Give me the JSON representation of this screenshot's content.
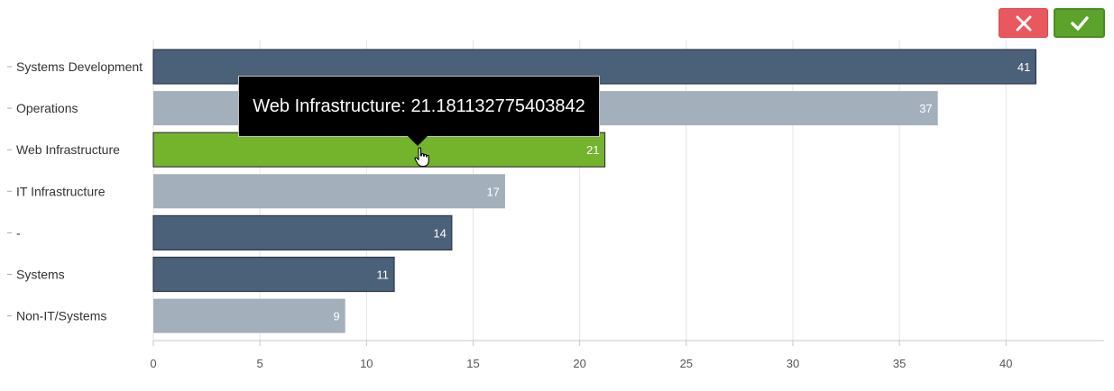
{
  "actions": {
    "cancel_icon": "close-icon",
    "confirm_icon": "check-icon"
  },
  "tooltip": {
    "text": "Web Infrastructure: 21.181132775403842"
  },
  "chart_data": {
    "type": "bar",
    "orientation": "horizontal",
    "categories": [
      "Systems Development",
      "Operations",
      "Web Infrastructure",
      "IT Infrastructure",
      "-",
      "Systems",
      "Non-IT/Systems"
    ],
    "values": [
      41.4,
      36.8,
      21.181132775403842,
      16.5,
      14,
      11.3,
      9.0
    ],
    "value_labels": [
      "41",
      "37",
      "21",
      "17",
      "14",
      "11",
      "9"
    ],
    "bar_colors": [
      "#4b6079",
      "#a4afbc",
      "#74b42d",
      "#a4afbc",
      "#4b6079",
      "#4b6079",
      "#a4afbc"
    ],
    "highlighted_category": "Web Infrastructure",
    "x_ticks": [
      0,
      5,
      10,
      15,
      20,
      25,
      30,
      35,
      40
    ],
    "xlim": [
      0,
      44.6
    ],
    "grid": "vertical",
    "colors": {
      "dark": "#4b6079",
      "light": "#a4afbc",
      "highlight": "#74b42d",
      "grid": "#e4e4e4",
      "text": "#333333"
    }
  }
}
